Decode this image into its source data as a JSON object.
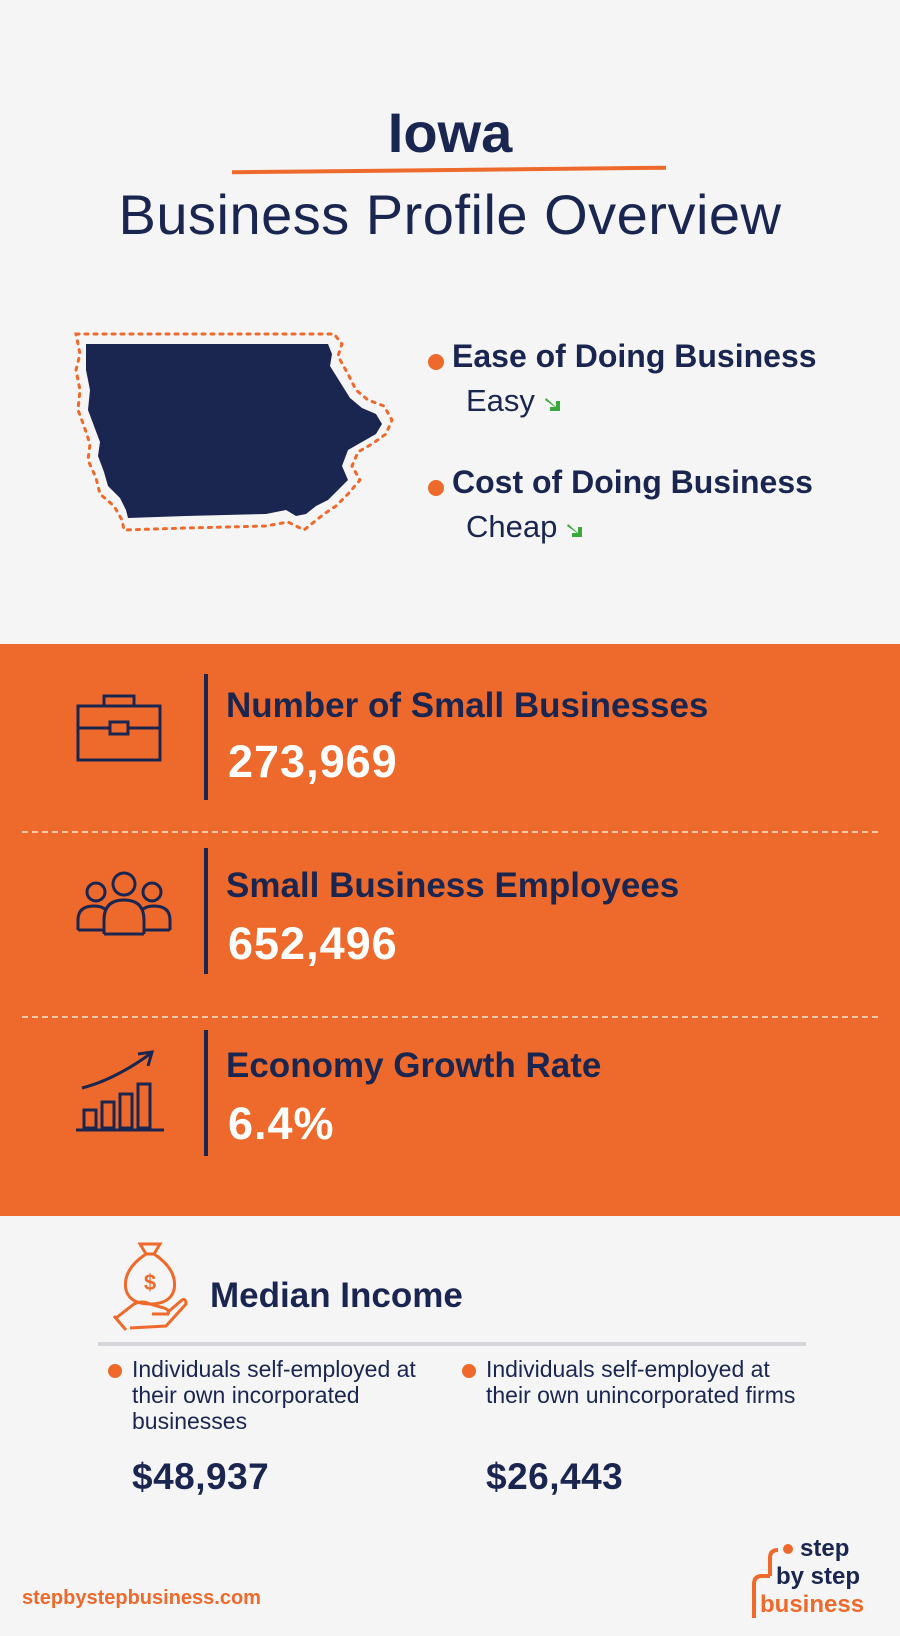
{
  "header": {
    "state": "Iowa",
    "subtitle": "Business Profile Overview"
  },
  "ratings": [
    {
      "label": "Ease of Doing Business",
      "value": "Easy",
      "icon": "arrow-down-right-icon",
      "icon_color": "#3aa83a"
    },
    {
      "label": "Cost of Doing Business",
      "value": "Cheap",
      "icon": "arrow-down-right-icon",
      "icon_color": "#3aa83a"
    }
  ],
  "stats": [
    {
      "label": "Number of Small Businesses",
      "value": "273,969",
      "icon": "briefcase-icon"
    },
    {
      "label": "Small Business Employees",
      "value": "652,496",
      "icon": "people-group-icon"
    },
    {
      "label": "Economy Growth Rate",
      "value": "6.4%",
      "icon": "growth-chart-icon"
    }
  ],
  "median_income": {
    "title": "Median Income",
    "icon": "money-bag-hand-icon",
    "items": [
      {
        "description": "Individuals self-employed at their own incorporated businesses",
        "amount": "$48,937"
      },
      {
        "description": "Individuals self-employed at their own unincorporated firms",
        "amount": "$26,443"
      }
    ]
  },
  "footer": {
    "url": "stepbystepbusiness.com",
    "logo_lines": [
      "step",
      "by step",
      "business"
    ]
  },
  "colors": {
    "navy": "#1a2650",
    "orange": "#ee6a2c",
    "background": "#f5f5f5",
    "arrow_green": "#3aa83a"
  }
}
